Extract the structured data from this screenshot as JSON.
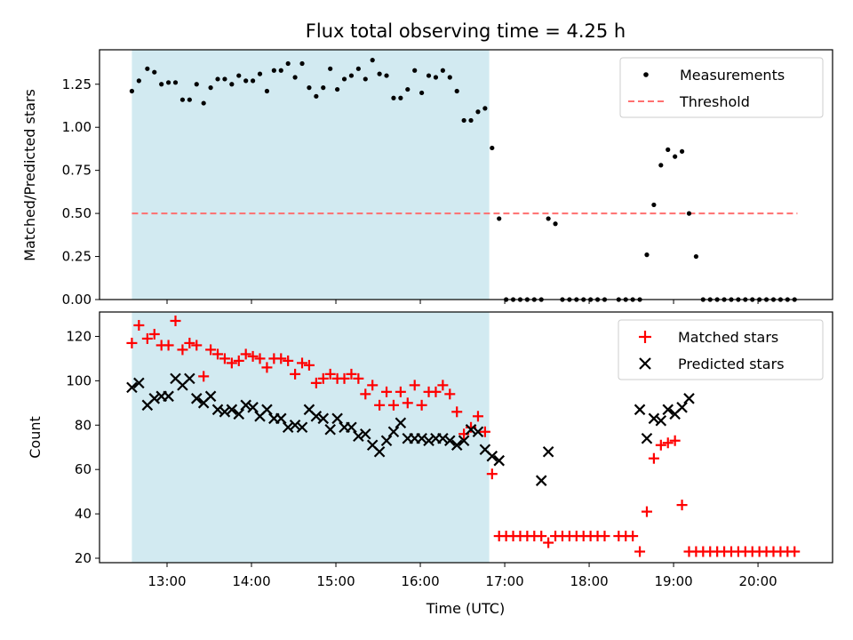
{
  "figure": {
    "title": "Flux total observing time = 4.25 h",
    "xlabel": "Time (UTC)",
    "x_tick_labels": [
      "13:00",
      "14:00",
      "15:00",
      "16:00",
      "17:00",
      "18:00",
      "19:00",
      "20:00"
    ],
    "shaded_span": {
      "start": "12:35",
      "end": "16:49",
      "color": "#add8e6"
    }
  },
  "chart_data": [
    {
      "type": "scatter",
      "ylabel": "Matched/Predicted stars",
      "xlim": [
        "12:12",
        "20:53"
      ],
      "ylim": [
        0.0,
        1.45
      ],
      "y_ticks": [
        "0.00",
        "0.25",
        "0.50",
        "0.75",
        "1.00",
        "1.25"
      ],
      "legend_position": "top-right",
      "threshold": {
        "name": "Threshold",
        "value": 0.5,
        "x_range": [
          "12:35",
          "20:28"
        ],
        "color": "#ff6f6f"
      },
      "series": [
        {
          "name": "Measurements",
          "color": "#000000",
          "marker": "dot",
          "points": [
            [
              "12:35",
              1.21
            ],
            [
              "12:40",
              1.27
            ],
            [
              "12:46",
              1.34
            ],
            [
              "12:51",
              1.32
            ],
            [
              "12:56",
              1.25
            ],
            [
              "13:01",
              1.26
            ],
            [
              "13:06",
              1.26
            ],
            [
              "13:11",
              1.16
            ],
            [
              "13:16",
              1.16
            ],
            [
              "13:21",
              1.25
            ],
            [
              "13:26",
              1.14
            ],
            [
              "13:31",
              1.23
            ],
            [
              "13:36",
              1.28
            ],
            [
              "13:41",
              1.28
            ],
            [
              "13:46",
              1.25
            ],
            [
              "13:51",
              1.3
            ],
            [
              "13:56",
              1.27
            ],
            [
              "14:01",
              1.27
            ],
            [
              "14:06",
              1.31
            ],
            [
              "14:11",
              1.21
            ],
            [
              "14:16",
              1.33
            ],
            [
              "14:21",
              1.33
            ],
            [
              "14:26",
              1.37
            ],
            [
              "14:31",
              1.29
            ],
            [
              "14:36",
              1.37
            ],
            [
              "14:41",
              1.23
            ],
            [
              "14:46",
              1.18
            ],
            [
              "14:51",
              1.23
            ],
            [
              "14:56",
              1.34
            ],
            [
              "15:01",
              1.22
            ],
            [
              "15:06",
              1.28
            ],
            [
              "15:11",
              1.3
            ],
            [
              "15:16",
              1.34
            ],
            [
              "15:21",
              1.28
            ],
            [
              "15:26",
              1.39
            ],
            [
              "15:31",
              1.31
            ],
            [
              "15:36",
              1.3
            ],
            [
              "15:41",
              1.17
            ],
            [
              "15:46",
              1.17
            ],
            [
              "15:51",
              1.22
            ],
            [
              "15:56",
              1.33
            ],
            [
              "16:01",
              1.2
            ],
            [
              "16:06",
              1.3
            ],
            [
              "16:11",
              1.29
            ],
            [
              "16:16",
              1.33
            ],
            [
              "16:21",
              1.29
            ],
            [
              "16:26",
              1.21
            ],
            [
              "16:31",
              1.04
            ],
            [
              "16:36",
              1.04
            ],
            [
              "16:41",
              1.09
            ],
            [
              "16:46",
              1.11
            ],
            [
              "16:51",
              0.88
            ],
            [
              "16:56",
              0.47
            ],
            [
              "17:01",
              0.0
            ],
            [
              "17:06",
              0.0
            ],
            [
              "17:11",
              0.0
            ],
            [
              "17:16",
              0.0
            ],
            [
              "17:21",
              0.0
            ],
            [
              "17:26",
              0.0
            ],
            [
              "17:31",
              0.47
            ],
            [
              "17:36",
              0.44
            ],
            [
              "17:41",
              0.0
            ],
            [
              "17:46",
              0.0
            ],
            [
              "17:51",
              0.0
            ],
            [
              "17:56",
              0.0
            ],
            [
              "18:01",
              0.0
            ],
            [
              "18:06",
              0.0
            ],
            [
              "18:11",
              0.0
            ],
            [
              "18:21",
              0.0
            ],
            [
              "18:26",
              0.0
            ],
            [
              "18:31",
              0.0
            ],
            [
              "18:36",
              0.0
            ],
            [
              "18:41",
              0.26
            ],
            [
              "18:46",
              0.55
            ],
            [
              "18:51",
              0.78
            ],
            [
              "18:56",
              0.87
            ],
            [
              "19:01",
              0.83
            ],
            [
              "19:06",
              0.86
            ],
            [
              "19:11",
              0.5
            ],
            [
              "19:16",
              0.25
            ],
            [
              "19:21",
              0.0
            ],
            [
              "19:26",
              0.0
            ],
            [
              "19:31",
              0.0
            ],
            [
              "19:36",
              0.0
            ],
            [
              "19:41",
              0.0
            ],
            [
              "19:46",
              0.0
            ],
            [
              "19:51",
              0.0
            ],
            [
              "19:56",
              0.0
            ],
            [
              "20:01",
              0.0
            ],
            [
              "20:06",
              0.0
            ],
            [
              "20:11",
              0.0
            ],
            [
              "20:16",
              0.0
            ],
            [
              "20:21",
              0.0
            ],
            [
              "20:26",
              0.0
            ]
          ]
        }
      ]
    },
    {
      "type": "scatter",
      "ylabel": "Count",
      "xlim": [
        "12:12",
        "20:53"
      ],
      "ylim": [
        18,
        131
      ],
      "y_ticks": [
        "20",
        "40",
        "60",
        "80",
        "100",
        "120"
      ],
      "legend_position": "top-right",
      "series": [
        {
          "name": "Matched stars",
          "color": "#ff0000",
          "marker": "plus",
          "points": [
            [
              "12:35",
              117
            ],
            [
              "12:40",
              125
            ],
            [
              "12:46",
              119
            ],
            [
              "12:51",
              121
            ],
            [
              "12:56",
              116
            ],
            [
              "13:01",
              116
            ],
            [
              "13:06",
              127
            ],
            [
              "13:11",
              114
            ],
            [
              "13:16",
              117
            ],
            [
              "13:21",
              116
            ],
            [
              "13:26",
              102
            ],
            [
              "13:31",
              114
            ],
            [
              "13:36",
              112
            ],
            [
              "13:41",
              110
            ],
            [
              "13:46",
              108
            ],
            [
              "13:51",
              109
            ],
            [
              "13:56",
              112
            ],
            [
              "14:01",
              111
            ],
            [
              "14:06",
              110
            ],
            [
              "14:11",
              106
            ],
            [
              "14:16",
              110
            ],
            [
              "14:21",
              110
            ],
            [
              "14:26",
              109
            ],
            [
              "14:31",
              103
            ],
            [
              "14:36",
              108
            ],
            [
              "14:41",
              107
            ],
            [
              "14:46",
              99
            ],
            [
              "14:51",
              101
            ],
            [
              "14:56",
              103
            ],
            [
              "15:01",
              101
            ],
            [
              "15:06",
              101
            ],
            [
              "15:11",
              103
            ],
            [
              "15:16",
              101
            ],
            [
              "15:21",
              94
            ],
            [
              "15:26",
              98
            ],
            [
              "15:31",
              89
            ],
            [
              "15:36",
              95
            ],
            [
              "15:41",
              89
            ],
            [
              "15:46",
              95
            ],
            [
              "15:51",
              90
            ],
            [
              "15:56",
              98
            ],
            [
              "16:01",
              89
            ],
            [
              "16:06",
              95
            ],
            [
              "16:11",
              95
            ],
            [
              "16:16",
              98
            ],
            [
              "16:21",
              94
            ],
            [
              "16:26",
              86
            ],
            [
              "16:31",
              76
            ],
            [
              "16:36",
              79
            ],
            [
              "16:41",
              84
            ],
            [
              "16:46",
              77
            ],
            [
              "16:51",
              58
            ],
            [
              "16:56",
              30
            ],
            [
              "17:01",
              30
            ],
            [
              "17:06",
              30
            ],
            [
              "17:11",
              30
            ],
            [
              "17:16",
              30
            ],
            [
              "17:21",
              30
            ],
            [
              "17:26",
              30
            ],
            [
              "17:31",
              27
            ],
            [
              "17:36",
              30
            ],
            [
              "17:41",
              30
            ],
            [
              "17:46",
              30
            ],
            [
              "17:51",
              30
            ],
            [
              "17:56",
              30
            ],
            [
              "18:01",
              30
            ],
            [
              "18:06",
              30
            ],
            [
              "18:11",
              30
            ],
            [
              "18:21",
              30
            ],
            [
              "18:26",
              30
            ],
            [
              "18:31",
              30
            ],
            [
              "18:36",
              23
            ],
            [
              "18:41",
              41
            ],
            [
              "18:46",
              65
            ],
            [
              "18:51",
              71
            ],
            [
              "18:56",
              72
            ],
            [
              "19:01",
              73
            ],
            [
              "19:06",
              44
            ],
            [
              "19:11",
              23
            ],
            [
              "19:16",
              23
            ],
            [
              "19:21",
              23
            ],
            [
              "19:26",
              23
            ],
            [
              "19:31",
              23
            ],
            [
              "19:36",
              23
            ],
            [
              "19:41",
              23
            ],
            [
              "19:46",
              23
            ],
            [
              "19:51",
              23
            ],
            [
              "19:56",
              23
            ],
            [
              "20:01",
              23
            ],
            [
              "20:06",
              23
            ],
            [
              "20:11",
              23
            ],
            [
              "20:16",
              23
            ],
            [
              "20:21",
              23
            ],
            [
              "20:26",
              23
            ]
          ]
        },
        {
          "name": "Predicted stars",
          "color": "#000000",
          "marker": "x",
          "points": [
            [
              "12:35",
              97
            ],
            [
              "12:40",
              99
            ],
            [
              "12:46",
              89
            ],
            [
              "12:51",
              92
            ],
            [
              "12:56",
              93
            ],
            [
              "13:01",
              93
            ],
            [
              "13:06",
              101
            ],
            [
              "13:11",
              98
            ],
            [
              "13:16",
              101
            ],
            [
              "13:21",
              92
            ],
            [
              "13:26",
              90
            ],
            [
              "13:31",
              93
            ],
            [
              "13:36",
              87
            ],
            [
              "13:41",
              86
            ],
            [
              "13:46",
              87
            ],
            [
              "13:51",
              85
            ],
            [
              "13:56",
              89
            ],
            [
              "14:01",
              88
            ],
            [
              "14:06",
              84
            ],
            [
              "14:11",
              87
            ],
            [
              "14:16",
              83
            ],
            [
              "14:21",
              83
            ],
            [
              "14:26",
              79
            ],
            [
              "14:31",
              80
            ],
            [
              "14:36",
              79
            ],
            [
              "14:41",
              87
            ],
            [
              "14:46",
              84
            ],
            [
              "14:51",
              83
            ],
            [
              "14:56",
              78
            ],
            [
              "15:01",
              83
            ],
            [
              "15:06",
              79
            ],
            [
              "15:11",
              79
            ],
            [
              "15:16",
              75
            ],
            [
              "15:21",
              76
            ],
            [
              "15:26",
              71
            ],
            [
              "15:31",
              68
            ],
            [
              "15:36",
              73
            ],
            [
              "15:41",
              77
            ],
            [
              "15:46",
              81
            ],
            [
              "15:51",
              74
            ],
            [
              "15:56",
              74
            ],
            [
              "16:01",
              74
            ],
            [
              "16:06",
              73
            ],
            [
              "16:11",
              74
            ],
            [
              "16:16",
              74
            ],
            [
              "16:21",
              73
            ],
            [
              "16:26",
              71
            ],
            [
              "16:31",
              73
            ],
            [
              "16:36",
              78
            ],
            [
              "16:41",
              77
            ],
            [
              "16:46",
              69
            ],
            [
              "16:51",
              66
            ],
            [
              "16:56",
              64
            ],
            [
              "17:26",
              55
            ],
            [
              "17:31",
              68
            ],
            [
              "18:36",
              87
            ],
            [
              "18:41",
              74
            ],
            [
              "18:46",
              83
            ],
            [
              "18:51",
              82
            ],
            [
              "18:56",
              87
            ],
            [
              "19:01",
              85
            ],
            [
              "19:06",
              88
            ],
            [
              "19:11",
              92
            ]
          ]
        }
      ]
    }
  ]
}
